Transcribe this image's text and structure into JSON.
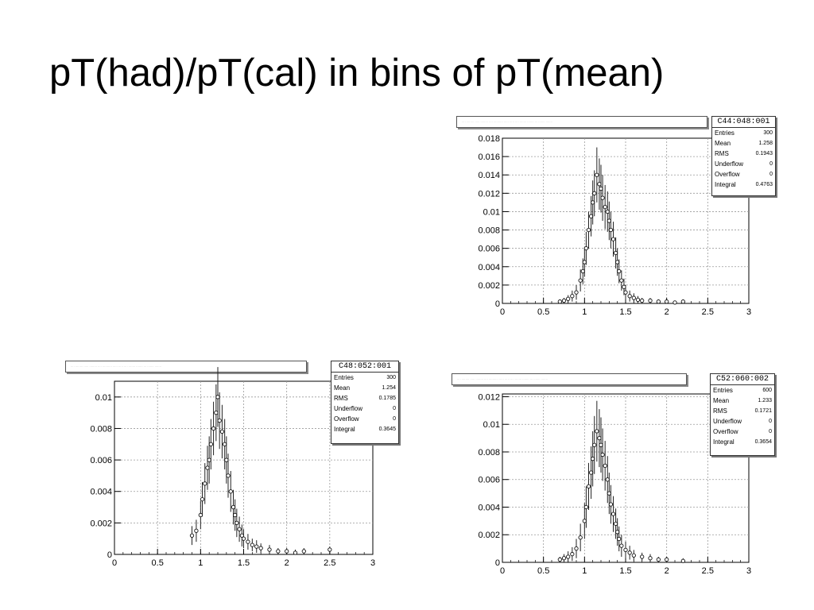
{
  "slide": {
    "title": "pT(had)/pT(cal) in bins of pT(mean)"
  },
  "chart_data": [
    {
      "type": "scatter",
      "title": "",
      "hist_title_text": "···· ········ ····· ········ ···· ·········· ····· ·····  ···· ······· ······· ··· ······· ·······",
      "xlabel": "",
      "ylabel": "",
      "xlim": [
        0,
        3
      ],
      "ylim": [
        0,
        0.018
      ],
      "x_ticks": [
        "0",
        "0.5",
        "1",
        "1.5",
        "2",
        "2.5",
        "3"
      ],
      "y_ticks": [
        "0",
        "0.002",
        "0.004",
        "0.006",
        "0.008",
        "0.01",
        "0.012",
        "0.014",
        "0.016",
        "0.018"
      ],
      "grid": true,
      "stats": {
        "name": "C44:048:001",
        "rows": [
          {
            "label": "Entries",
            "value": "300"
          },
          {
            "label": "Mean",
            "value": "1.258"
          },
          {
            "label": "RMS",
            "value": "0.1943"
          },
          {
            "label": "Underflow",
            "value": "0"
          },
          {
            "label": "Overflow",
            "value": "0"
          },
          {
            "label": "Integral",
            "value": "0.4763"
          }
        ]
      },
      "series": [
        {
          "x": [
            0.7,
            0.75,
            0.8,
            0.85,
            0.9,
            0.95,
            0.98,
            1.0,
            1.02,
            1.05,
            1.08,
            1.1,
            1.12,
            1.15,
            1.18,
            1.2,
            1.22,
            1.25,
            1.28,
            1.3,
            1.32,
            1.35,
            1.38,
            1.4,
            1.42,
            1.45,
            1.48,
            1.5,
            1.55,
            1.6,
            1.65,
            1.7,
            1.8,
            1.9,
            2.0,
            2.1,
            2.2
          ],
          "y": [
            0.0002,
            0.0003,
            0.0005,
            0.0008,
            0.0012,
            0.0025,
            0.0035,
            0.0045,
            0.006,
            0.008,
            0.0095,
            0.011,
            0.012,
            0.014,
            0.013,
            0.0125,
            0.0115,
            0.0105,
            0.01,
            0.009,
            0.008,
            0.007,
            0.0055,
            0.0045,
            0.0035,
            0.0025,
            0.0018,
            0.0012,
            0.0008,
            0.0006,
            0.0004,
            0.0003,
            0.0003,
            0.0002,
            0.0002,
            0.0001,
            0.0002
          ],
          "err": [
            0.0002,
            0.0003,
            0.0004,
            0.0006,
            0.0008,
            0.0012,
            0.0014,
            0.0016,
            0.0018,
            0.002,
            0.0022,
            0.0024,
            0.0025,
            0.003,
            0.0028,
            0.0026,
            0.0025,
            0.0024,
            0.0022,
            0.0021,
            0.002,
            0.0019,
            0.0017,
            0.0015,
            0.0013,
            0.0011,
            0.0009,
            0.0008,
            0.0006,
            0.0005,
            0.0004,
            0.0003,
            0.0003,
            0.0002,
            0.0002,
            0.0002,
            0.0002
          ]
        }
      ]
    },
    {
      "type": "scatter",
      "title": "",
      "hist_title_text": "···· ········ ····· ········ ···· ·········· ····· ·····  ···· ······· ······· ··· ······· ·······",
      "xlabel": "",
      "ylabel": "",
      "xlim": [
        0,
        3
      ],
      "ylim": [
        0,
        0.011
      ],
      "x_ticks": [
        "0",
        "0.5",
        "1",
        "1.5",
        "2",
        "2.5",
        "3"
      ],
      "y_ticks": [
        "0",
        "0.002",
        "0.004",
        "0.006",
        "0.008",
        "0.01"
      ],
      "grid": true,
      "stats": {
        "name": "C48:052:001",
        "rows": [
          {
            "label": "Entries",
            "value": "300"
          },
          {
            "label": "Mean",
            "value": "1.254"
          },
          {
            "label": "RMS",
            "value": "0.1785"
          },
          {
            "label": "Underflow",
            "value": "0"
          },
          {
            "label": "Overflow",
            "value": "0"
          },
          {
            "label": "Integral",
            "value": "0.3645"
          }
        ]
      },
      "series": [
        {
          "x": [
            0.9,
            0.95,
            1.0,
            1.02,
            1.05,
            1.08,
            1.1,
            1.12,
            1.15,
            1.18,
            1.2,
            1.22,
            1.25,
            1.28,
            1.3,
            1.32,
            1.35,
            1.38,
            1.4,
            1.42,
            1.45,
            1.48,
            1.5,
            1.55,
            1.6,
            1.65,
            1.7,
            1.8,
            1.9,
            2.0,
            2.1,
            2.2,
            2.5
          ],
          "y": [
            0.0012,
            0.0015,
            0.0025,
            0.0035,
            0.0045,
            0.0055,
            0.006,
            0.007,
            0.008,
            0.009,
            0.01,
            0.0085,
            0.0078,
            0.007,
            0.006,
            0.005,
            0.004,
            0.003,
            0.0025,
            0.002,
            0.0016,
            0.0012,
            0.001,
            0.0008,
            0.0006,
            0.0005,
            0.0004,
            0.0003,
            0.0002,
            0.0002,
            0.0001,
            0.0002,
            0.0003
          ],
          "err": [
            0.0006,
            0.0007,
            0.0009,
            0.0011,
            0.0013,
            0.0014,
            0.0015,
            0.0016,
            0.0017,
            0.0018,
            0.0019,
            0.0018,
            0.0017,
            0.0016,
            0.0015,
            0.0014,
            0.0013,
            0.0011,
            0.001,
            0.0009,
            0.0008,
            0.0007,
            0.0006,
            0.0005,
            0.0004,
            0.0004,
            0.0003,
            0.0003,
            0.0002,
            0.0002,
            0.0002,
            0.0002,
            0.0002
          ]
        }
      ]
    },
    {
      "type": "scatter",
      "title": "",
      "hist_title_text": "···· ········ ····· ········ ···· ·········· ····· ·····  ···· ······· ······· ··· ······· ·······",
      "xlabel": "",
      "ylabel": "",
      "xlim": [
        0,
        3
      ],
      "ylim": [
        0,
        0.0122
      ],
      "x_ticks": [
        "0",
        "0.5",
        "1",
        "1.5",
        "2",
        "2.5",
        "3"
      ],
      "y_ticks": [
        "0",
        "0.002",
        "0.004",
        "0.006",
        "0.008",
        "0.01",
        "0.012"
      ],
      "grid": true,
      "stats": {
        "name": "C52:060:002",
        "rows": [
          {
            "label": "Entries",
            "value": "600"
          },
          {
            "label": "Mean",
            "value": "1.233"
          },
          {
            "label": "RMS",
            "value": "0.1721"
          },
          {
            "label": "Underflow",
            "value": "0"
          },
          {
            "label": "Overflow",
            "value": "0"
          },
          {
            "label": "Integral",
            "value": "0.3654"
          }
        ]
      },
      "series": [
        {
          "x": [
            0.7,
            0.75,
            0.8,
            0.85,
            0.9,
            0.95,
            1.0,
            1.02,
            1.05,
            1.08,
            1.1,
            1.12,
            1.15,
            1.18,
            1.2,
            1.22,
            1.25,
            1.28,
            1.3,
            1.32,
            1.35,
            1.38,
            1.4,
            1.42,
            1.45,
            1.5,
            1.55,
            1.6,
            1.7,
            1.8,
            1.9,
            2.0,
            2.2
          ],
          "y": [
            0.0002,
            0.0003,
            0.0004,
            0.0006,
            0.001,
            0.0018,
            0.003,
            0.004,
            0.0055,
            0.0065,
            0.0075,
            0.0085,
            0.0095,
            0.009,
            0.0085,
            0.0078,
            0.007,
            0.006,
            0.005,
            0.0042,
            0.0035,
            0.0028,
            0.0022,
            0.0017,
            0.0012,
            0.0009,
            0.0007,
            0.0005,
            0.0004,
            0.0003,
            0.0002,
            0.0002,
            0.0001
          ],
          "err": [
            0.0002,
            0.0003,
            0.0004,
            0.0005,
            0.0007,
            0.001,
            0.0013,
            0.0015,
            0.0017,
            0.0019,
            0.002,
            0.0021,
            0.0022,
            0.0021,
            0.002,
            0.0019,
            0.0018,
            0.0017,
            0.0015,
            0.0014,
            0.0013,
            0.0011,
            0.001,
            0.0009,
            0.0008,
            0.0006,
            0.0005,
            0.0004,
            0.0003,
            0.0003,
            0.0002,
            0.0002,
            0.0002
          ]
        }
      ]
    }
  ]
}
